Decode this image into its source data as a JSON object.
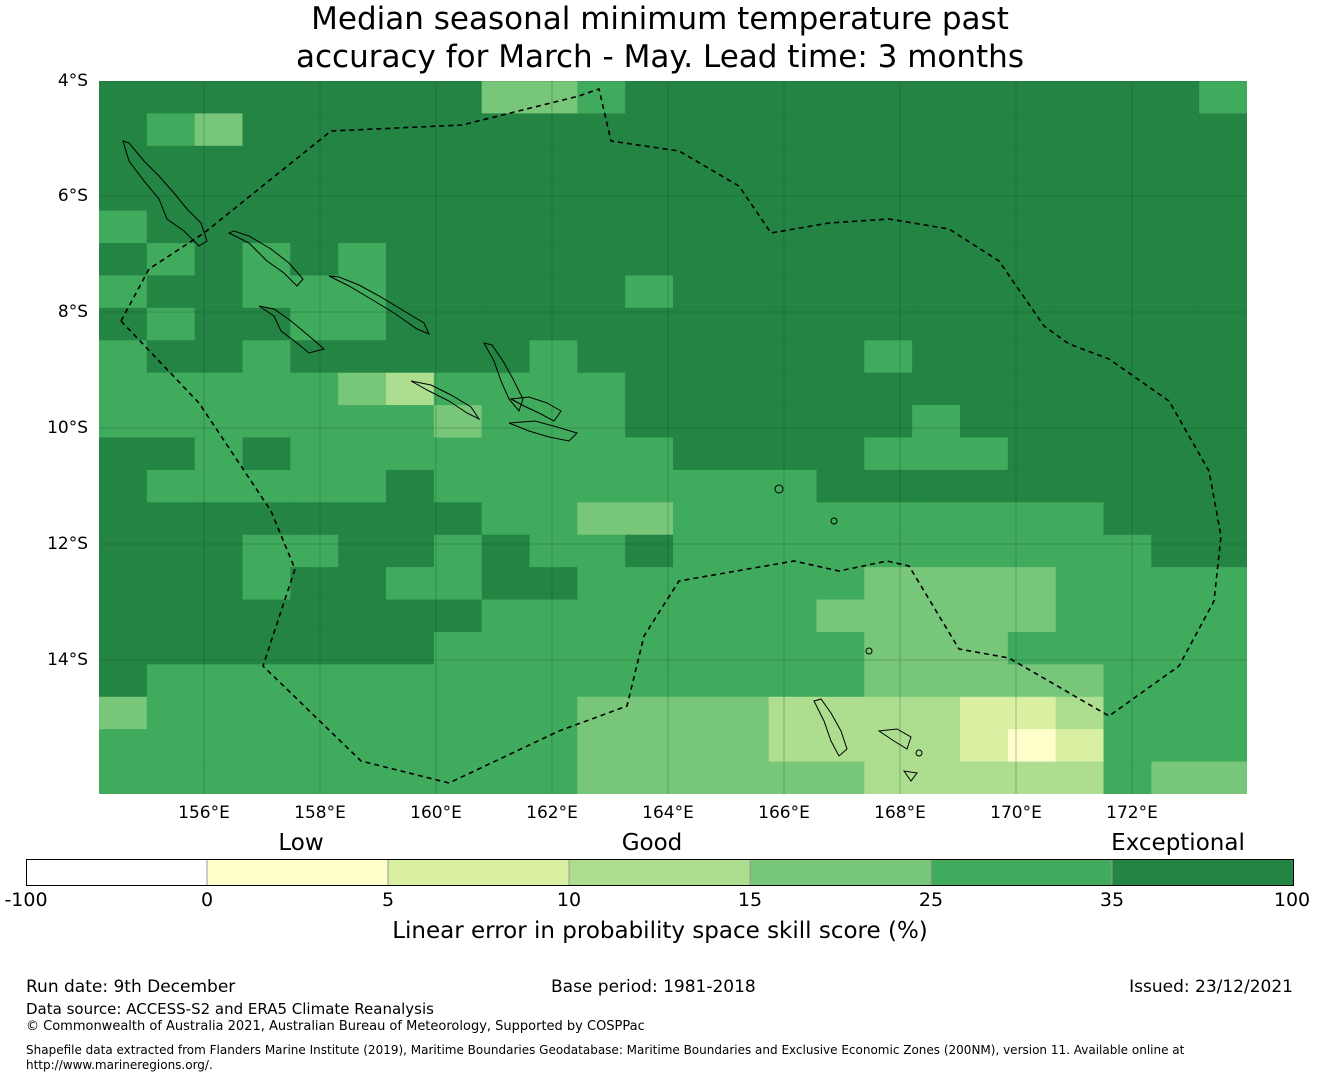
{
  "title_line1": "Median seasonal minimum temperature past",
  "title_line2": "accuracy for March - May. Lead time: 3 months",
  "map": {
    "lat_labels": [
      "4°S",
      "6°S",
      "8°S",
      "10°S",
      "12°S",
      "14°S"
    ],
    "lon_labels": [
      "156°E",
      "158°E",
      "160°E",
      "162°E",
      "164°E",
      "166°E",
      "168°E",
      "170°E",
      "172°E"
    ],
    "colors": {
      "c4": "#d9f0a3",
      "c5": "#addd8e",
      "c6": "#78c679",
      "c7": "#41ab5d",
      "c8": "#238443",
      "c3": "#ffffcc"
    }
  },
  "colorbar": {
    "categories": [
      "Low",
      "Good",
      "Exceptional"
    ],
    "ticks": [
      "-100",
      "0",
      "5",
      "10",
      "15",
      "25",
      "35",
      "100"
    ],
    "colors": [
      "#ffffff",
      "#ffffcc",
      "#d9f0a3",
      "#addd8e",
      "#78c679",
      "#41ab5d",
      "#238443"
    ],
    "label": "Linear error in probability space skill score (%)"
  },
  "footer": {
    "run_date": "Run date: 9th December",
    "base_period": "Base period: 1981-2018",
    "issued": "Issued: 23/12/2021",
    "data_source": "Data source: ACCESS-S2 and ERA5 Climate Reanalysis",
    "copyright": "© Commonwealth of Australia 2021, Australian Bureau of Meteorology, Supported by COSPPac",
    "shapefile_line1": "Shapefile data extracted from Flanders Marine Institute (2019), Maritime Boundaries Geodatabase: Maritime Boundaries and Exclusive Economic Zones (200NM), version 11. Available online at",
    "shapefile_line2": "http://www.marineregions.org/."
  }
}
